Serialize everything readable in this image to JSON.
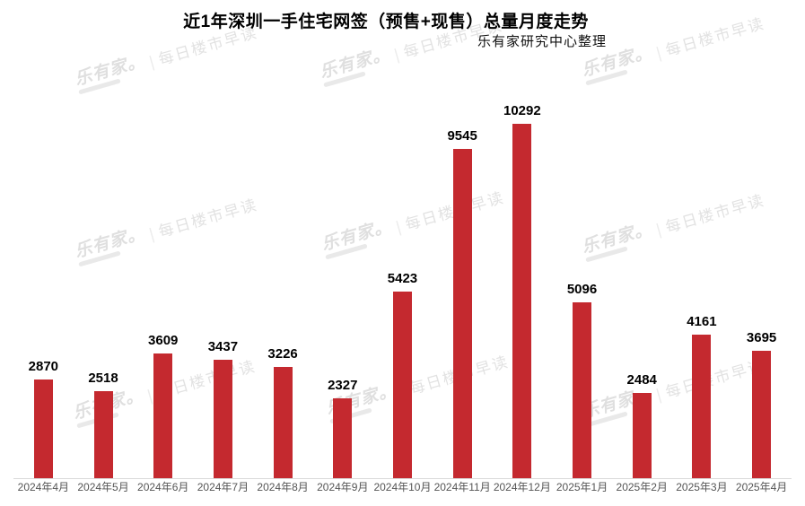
{
  "title": "近1年深圳一手住宅网签（预售+现售）总量月度走势",
  "subtitle": "乐有家研究中心整理",
  "watermark": {
    "brand": "乐有家。",
    "separator": "|",
    "text": "每日楼市早读"
  },
  "colors": {
    "bar": "#C4292F",
    "axis_line": "#D9D9D9",
    "value_label": "#000000",
    "tick_label": "#555555",
    "watermark_text": "#E2E2E2"
  },
  "chart_data": {
    "type": "bar",
    "title": "近1年深圳一手住宅网签（预售+现售）总量月度走势",
    "subtitle": "乐有家研究中心整理",
    "categories": [
      "2024年4月",
      "2024年5月",
      "2024年6月",
      "2024年7月",
      "2024年8月",
      "2024年9月",
      "2024年10月",
      "2024年11月",
      "2024年12月",
      "2025年1月",
      "2025年2月",
      "2025年3月",
      "2025年4月"
    ],
    "values": [
      2870,
      2518,
      3609,
      3437,
      3226,
      2327,
      5423,
      9545,
      10292,
      5096,
      2484,
      4161,
      3695
    ],
    "xlabel": "",
    "ylabel": "",
    "ylim": [
      0,
      10800
    ],
    "grid": false,
    "legend": false,
    "data_labels": true,
    "bar_color": "#C4292F"
  }
}
